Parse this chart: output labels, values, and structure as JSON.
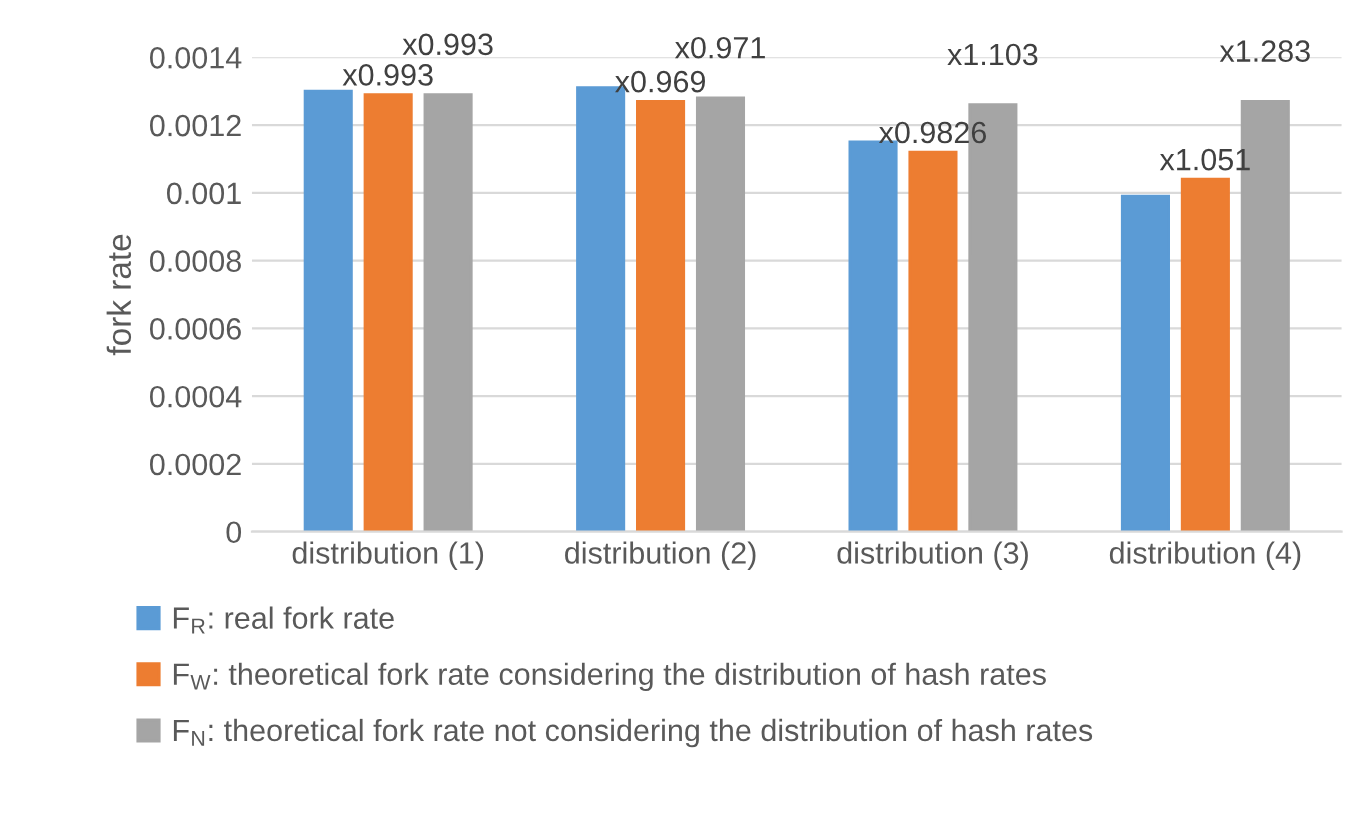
{
  "chart_data": {
    "type": "bar",
    "ylabel": "fork rate",
    "categories": [
      "distribution (1)",
      "distribution (2)",
      "distribution (3)",
      "distribution (4)"
    ],
    "series": [
      {
        "name": "F$_{R}$: real fork rate",
        "color": "#5b9bd5",
        "values": [
          0.0013,
          0.00131,
          0.00115,
          0.00099
        ]
      },
      {
        "name": "F$_{W}$: theoretical fork rate considering the distribution of hash rates",
        "color": "#ed7d31",
        "values": [
          0.00129,
          0.00127,
          0.00112,
          0.00104
        ],
        "value_labels": [
          "x0.993",
          "x0.969",
          "x0.9826",
          "x1.051"
        ]
      },
      {
        "name": "F$_{N}$: theoretical fork rate not considering the distribution of hash rates",
        "color": "#a5a5a5",
        "values": [
          0.00129,
          0.00128,
          0.00126,
          0.00127
        ],
        "value_labels": [
          "x0.993",
          "x0.971",
          "x1.103",
          "x1.283"
        ]
      }
    ],
    "ylim": [
      0,
      0.0014
    ],
    "yticks": [
      0,
      {
        "value": 0.0002,
        "label": "0.0002"
      },
      {
        "value": 0.0004,
        "label": "0.0004"
      },
      {
        "value": 0.0006,
        "label": "0.0006"
      },
      {
        "value": 0.0008,
        "label": "0.0008"
      },
      {
        "value": 0.001,
        "label": "0.001"
      },
      {
        "value": 0.0012,
        "label": "0.0012"
      },
      {
        "value": 0.0014,
        "label": "0.0014"
      }
    ],
    "grid": "y",
    "legend": "bottom"
  }
}
